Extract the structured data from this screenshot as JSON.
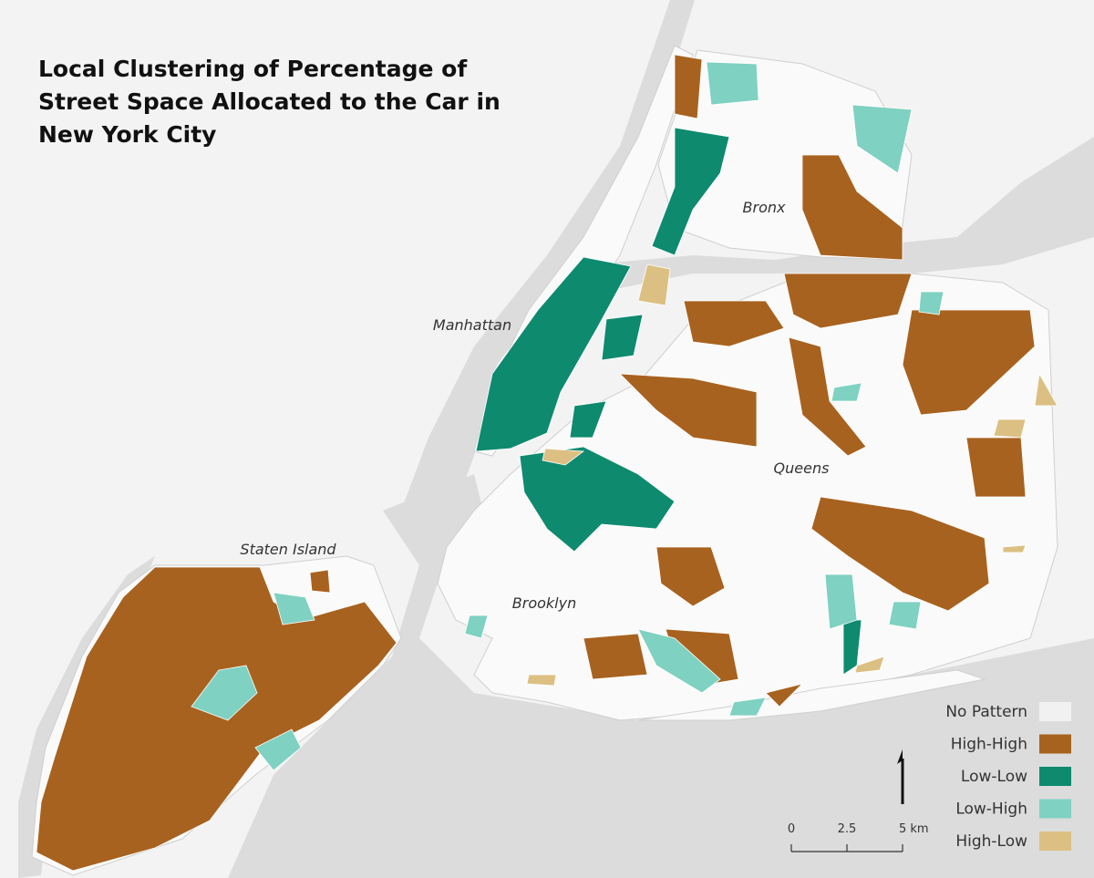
{
  "title": "Local Clustering of Percentage of Street Space Allocated to the Car in New York City",
  "places": [
    "Bronx",
    "Manhattan",
    "Queens",
    "Brooklyn",
    "Staten Island"
  ],
  "legend": [
    {
      "label": "No Pattern",
      "color": "#f1f1f1"
    },
    {
      "label": "High-High",
      "color": "#a8621f"
    },
    {
      "label": "Low-Low",
      "color": "#0e8a6f"
    },
    {
      "label": "Low-High",
      "color": "#7fd1c1"
    },
    {
      "label": "High-Low",
      "color": "#dcc083"
    }
  ],
  "scale_bar": [
    "0",
    "2.5",
    "5 km"
  ]
}
